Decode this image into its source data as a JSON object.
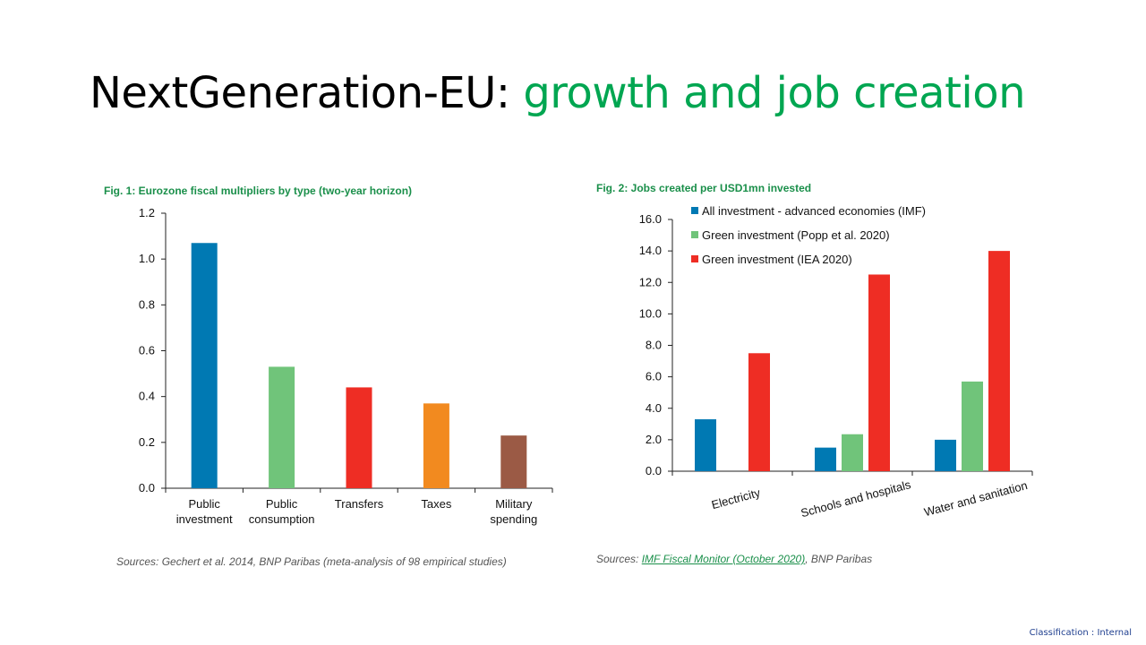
{
  "slide": {
    "title_part1": "NextGeneration-EU:",
    "title_part2": "growth and job creation",
    "classification": "Classification : Internal"
  },
  "figure1": {
    "caption": "Fig. 1: Eurozone fiscal multipliers by type  (two-year horizon)",
    "source": "Sources: Gechert et al. 2014, BNP Paribas (meta-analysis of 98 empirical studies)"
  },
  "figure2": {
    "caption": "Fig. 2: Jobs created per USD1mn invested",
    "source_prefix": "Sources: ",
    "source_link": "IMF Fiscal Monitor (October 2020)",
    "source_suffix": ", BNP Paribas"
  },
  "chart_data": [
    {
      "type": "bar",
      "title": "Fig. 1: Eurozone fiscal multipliers by type  (two-year horizon)",
      "categories": [
        [
          "Public",
          "investment"
        ],
        [
          "Public",
          "consumption"
        ],
        [
          "Transfers"
        ],
        [
          "Taxes"
        ],
        [
          "Military",
          "spending"
        ]
      ],
      "values": [
        1.07,
        0.53,
        0.44,
        0.37,
        0.23
      ],
      "colors": [
        "#0079b3",
        "#70c47a",
        "#ee2d24",
        "#f28a1f",
        "#9b5a45"
      ],
      "ylim": [
        0,
        1.2
      ],
      "yticks": [
        "0.0",
        "0.2",
        "0.4",
        "0.6",
        "0.8",
        "1.0",
        "1.2"
      ],
      "grid": false,
      "legend": "none"
    },
    {
      "type": "bar",
      "title": "Fig. 2: Jobs created per USD1mn invested",
      "categories": [
        "Electricity",
        "Schools and hospitals",
        "Water and sanitation"
      ],
      "series": [
        {
          "name": "All investment - advanced economies (IMF)",
          "color": "#0079b3",
          "values": [
            3.3,
            1.5,
            2.0
          ]
        },
        {
          "name": "Green investment (Popp et al. 2020)",
          "color": "#70c47a",
          "values": [
            null,
            2.35,
            5.7
          ]
        },
        {
          "name": "Green investment (IEA 2020)",
          "color": "#ee2d24",
          "values": [
            7.5,
            12.5,
            14.0
          ]
        }
      ],
      "ylim": [
        0,
        16
      ],
      "yticks": [
        "0.0",
        "2.0",
        "4.0",
        "6.0",
        "8.0",
        "10.0",
        "12.0",
        "14.0",
        "16.0"
      ],
      "grid": false,
      "legend": "top-left"
    }
  ]
}
